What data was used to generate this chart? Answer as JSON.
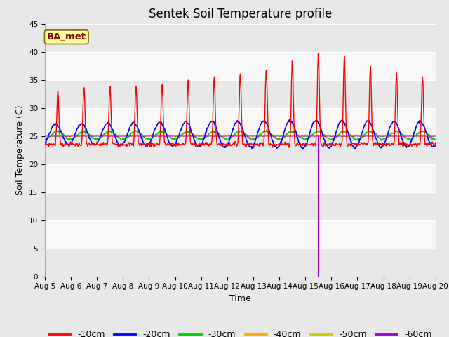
{
  "title": "Sentek Soil Temperature profile",
  "xlabel": "Time",
  "ylabel": "Soil Temperature (C)",
  "ylim": [
    0,
    45
  ],
  "yticks": [
    0,
    5,
    10,
    15,
    20,
    25,
    30,
    35,
    40,
    45
  ],
  "n_days": 15,
  "annotation_text": "BA_met",
  "annotation_color": "#8B0000",
  "annotation_bg": "#FFFF99",
  "colors": {
    "-10cm": "#FF0000",
    "-20cm": "#0000FF",
    "-30cm": "#00CC00",
    "-40cm": "#FFA500",
    "-50cm": "#CCCC00",
    "-60cm": "#9900CC"
  },
  "bg_color": "#E8E8E8",
  "plot_bg_color": "#F0F0F0",
  "band_colors": [
    "#E8E8E8",
    "#F8F8F8"
  ],
  "grid_color": "#FFFFFF",
  "vertical_line_day": 10.5
}
